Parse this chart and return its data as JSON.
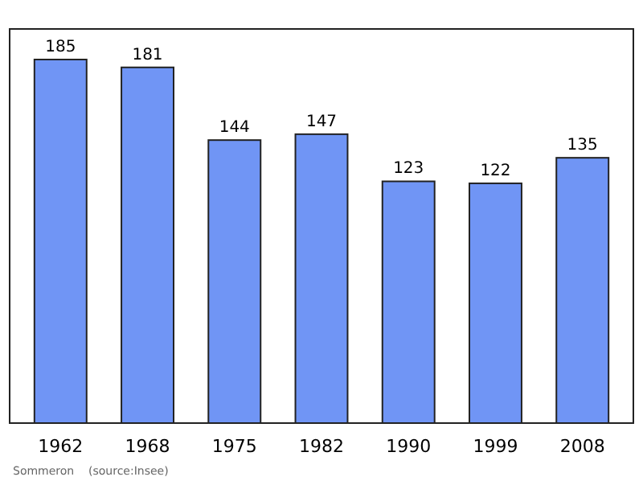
{
  "chart_data": {
    "type": "bar",
    "categories": [
      "1962",
      "1968",
      "1975",
      "1982",
      "1990",
      "1999",
      "2008"
    ],
    "values": [
      185,
      181,
      144,
      147,
      123,
      122,
      135
    ],
    "color": "#7095f5",
    "data_labels": true,
    "annotations": [
      "Sommeron    (source:Insee)"
    ]
  }
}
